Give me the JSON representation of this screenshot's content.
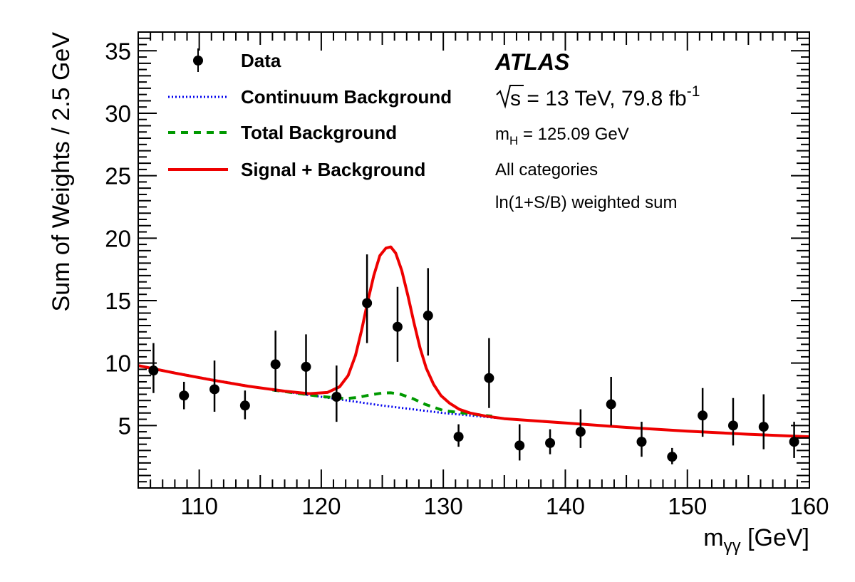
{
  "chart_data": {
    "type": "scatter",
    "xlabel_main": "m",
    "xlabel_sub": "γγ",
    "xlabel_unit": " [GeV]",
    "ylabel": "Sum of Weights /  2.5 GeV",
    "xlim": [
      105,
      160
    ],
    "ylim": [
      0,
      36.5
    ],
    "x_ticks": [
      110,
      120,
      130,
      140,
      150,
      160
    ],
    "y_ticks": [
      5,
      10,
      15,
      20,
      25,
      30,
      35
    ],
    "grid": false,
    "legend_position": "top-left",
    "legend": [
      {
        "name": "Data",
        "style": "marker"
      },
      {
        "name": "Continuum Background",
        "style": "dotted",
        "color": "#0000ee"
      },
      {
        "name": "Total Background",
        "style": "dashed",
        "color": "#009900"
      },
      {
        "name": "Signal + Background",
        "style": "solid",
        "color": "#ee0000"
      }
    ],
    "annotations": {
      "experiment": "ATLAS",
      "energy_prefix": "s",
      "energy_rest": " = 13 TeV, 79.8 fb",
      "energy_sup": "-1",
      "mass_m": "m",
      "mass_sub": "H",
      "mass_rest": " = 125.09 GeV",
      "categories": "All categories",
      "weighting": "ln(1+S/B) weighted sum"
    },
    "data_points": [
      {
        "x": 106.25,
        "y": 9.4,
        "err_lo": 1.8,
        "err_hi": 2.2
      },
      {
        "x": 108.75,
        "y": 7.4,
        "err_lo": 1.1,
        "err_hi": 1.1
      },
      {
        "x": 111.25,
        "y": 7.9,
        "err_lo": 1.8,
        "err_hi": 2.3
      },
      {
        "x": 113.75,
        "y": 6.6,
        "err_lo": 1.1,
        "err_hi": 1.2
      },
      {
        "x": 116.25,
        "y": 9.9,
        "err_lo": 2.2,
        "err_hi": 2.7
      },
      {
        "x": 118.75,
        "y": 9.7,
        "err_lo": 2.3,
        "err_hi": 2.6
      },
      {
        "x": 121.25,
        "y": 7.3,
        "err_lo": 2.0,
        "err_hi": 2.5
      },
      {
        "x": 123.75,
        "y": 14.8,
        "err_lo": 3.2,
        "err_hi": 3.9
      },
      {
        "x": 126.25,
        "y": 12.9,
        "err_lo": 2.8,
        "err_hi": 3.2
      },
      {
        "x": 128.75,
        "y": 13.8,
        "err_lo": 3.2,
        "err_hi": 3.8
      },
      {
        "x": 131.25,
        "y": 4.1,
        "err_lo": 0.8,
        "err_hi": 1.0
      },
      {
        "x": 133.75,
        "y": 8.8,
        "err_lo": 2.4,
        "err_hi": 3.2
      },
      {
        "x": 136.25,
        "y": 3.4,
        "err_lo": 1.2,
        "err_hi": 1.7
      },
      {
        "x": 138.75,
        "y": 3.6,
        "err_lo": 0.9,
        "err_hi": 1.1
      },
      {
        "x": 141.25,
        "y": 4.5,
        "err_lo": 1.3,
        "err_hi": 1.8
      },
      {
        "x": 143.75,
        "y": 6.7,
        "err_lo": 1.7,
        "err_hi": 2.2
      },
      {
        "x": 146.25,
        "y": 3.7,
        "err_lo": 1.2,
        "err_hi": 1.6
      },
      {
        "x": 148.75,
        "y": 2.5,
        "err_lo": 0.6,
        "err_hi": 0.7
      },
      {
        "x": 151.25,
        "y": 5.8,
        "err_lo": 1.7,
        "err_hi": 2.2
      },
      {
        "x": 153.75,
        "y": 5.0,
        "err_lo": 1.6,
        "err_hi": 2.2
      },
      {
        "x": 156.25,
        "y": 4.9,
        "err_lo": 1.8,
        "err_hi": 2.6
      },
      {
        "x": 158.75,
        "y": 3.7,
        "err_lo": 1.3,
        "err_hi": 1.6
      }
    ],
    "curves": {
      "continuum_background": {
        "x": [
          105,
          110,
          115,
          120,
          125,
          130,
          135,
          140,
          145,
          150,
          155,
          160
        ],
        "y": [
          9.8,
          8.85,
          8.0,
          7.3,
          6.6,
          6.0,
          5.55,
          5.2,
          4.85,
          4.55,
          4.3,
          4.1
        ]
      },
      "total_background": {
        "x": [
          116,
          120,
          122,
          123,
          124,
          125,
          125.7,
          126.5,
          127.5,
          128.5,
          130,
          132,
          134
        ],
        "y": [
          7.85,
          7.32,
          7.15,
          7.25,
          7.45,
          7.6,
          7.62,
          7.5,
          7.15,
          6.7,
          6.2,
          5.95,
          5.75
        ]
      },
      "signal_plus_background": {
        "x": [
          105,
          108,
          111,
          114,
          117,
          119,
          120.5,
          121.5,
          122.2,
          122.8,
          123.3,
          123.8,
          124.3,
          124.8,
          125.3,
          125.7,
          126.1,
          126.6,
          127.1,
          127.6,
          128.1,
          128.6,
          129.2,
          129.8,
          130.5,
          131.3,
          132.2,
          133.5,
          135,
          140,
          145,
          150,
          155,
          160
        ],
        "y": [
          9.8,
          9.2,
          8.65,
          8.15,
          7.75,
          7.55,
          7.65,
          8.1,
          9.0,
          10.6,
          12.6,
          14.9,
          17.0,
          18.6,
          19.2,
          19.3,
          18.8,
          17.4,
          15.4,
          13.2,
          11.2,
          9.6,
          8.3,
          7.4,
          6.8,
          6.3,
          6.0,
          5.75,
          5.55,
          5.2,
          4.85,
          4.55,
          4.3,
          4.1
        ]
      }
    }
  }
}
